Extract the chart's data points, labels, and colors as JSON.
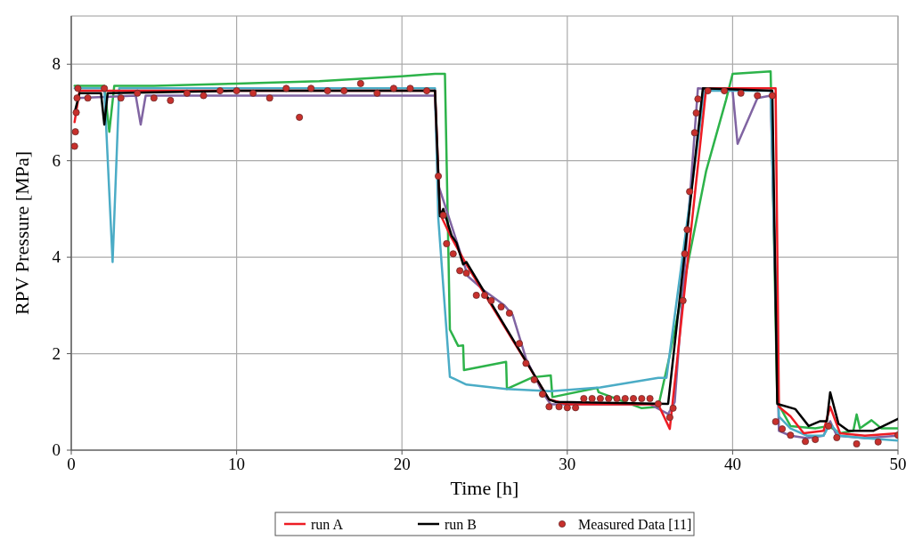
{
  "chart_data": {
    "type": "line",
    "xlabel": "Time [h]",
    "ylabel": "RPV Pressure [MPa]",
    "xlim": [
      0,
      50
    ],
    "ylim": [
      0,
      9
    ],
    "xticks": [
      0,
      10,
      20,
      30,
      40,
      50
    ],
    "yticks": [
      0,
      2,
      4,
      6,
      8
    ],
    "grid": true,
    "legend": "bottom",
    "line_style": "solid",
    "series": [
      {
        "color": "#2db34a",
        "x": [
          0.2,
          2.0,
          2.3,
          2.6,
          5,
          10,
          15,
          20,
          22.0,
          22.6,
          22.9,
          23.4,
          23.7,
          23.75,
          26.3,
          26.35,
          27.9,
          29.0,
          29.1,
          31.8,
          31.9,
          34.5,
          35.5,
          36.2,
          38.4,
          39.6,
          40.0,
          42.3,
          42.7,
          43.5,
          45,
          45.8,
          46.5,
          47.3,
          47.5,
          47.7,
          48.4,
          49,
          50
        ],
        "values": [
          7.55,
          7.55,
          6.6,
          7.55,
          7.55,
          7.6,
          7.65,
          7.75,
          7.8,
          7.8,
          2.5,
          2.16,
          2.17,
          1.66,
          1.83,
          1.27,
          1.51,
          1.55,
          1.1,
          1.29,
          1.2,
          0.87,
          0.9,
          1.97,
          5.79,
          7.26,
          7.8,
          7.85,
          1.0,
          0.5,
          0.45,
          0.5,
          0.35,
          0.4,
          0.74,
          0.45,
          0.62,
          0.45,
          0.45
        ]
      },
      {
        "color": "#8064a2",
        "x": [
          0.3,
          3.9,
          4.2,
          4.5,
          10,
          20,
          22.0,
          22.2,
          24,
          25,
          26.2,
          26.7,
          27.5,
          28.5,
          29,
          30,
          35,
          36.1,
          36.5,
          37.9,
          40.0,
          40.3,
          41.5,
          42.3,
          42.8,
          43.5,
          44.5,
          45.5,
          45.9,
          46.3,
          48,
          50
        ],
        "values": [
          7.3,
          7.35,
          6.75,
          7.35,
          7.35,
          7.35,
          7.35,
          5.5,
          3.6,
          3.3,
          3.0,
          2.8,
          1.9,
          1.2,
          0.95,
          0.95,
          0.95,
          0.75,
          1.0,
          7.5,
          7.45,
          6.35,
          7.3,
          7.35,
          0.4,
          0.3,
          0.25,
          0.3,
          0.6,
          0.3,
          0.25,
          0.3
        ]
      },
      {
        "color": "#4bacc6",
        "x": [
          0.2,
          2.0,
          2.5,
          2.9,
          10,
          22.0,
          22.2,
          22.9,
          23.9,
          26.3,
          29,
          32,
          35.5,
          36.0,
          38.3,
          42.3,
          42.8,
          43.5,
          44.5,
          45.5,
          45.9,
          46.5,
          48,
          50
        ],
        "values": [
          7.5,
          7.5,
          3.9,
          7.5,
          7.5,
          7.5,
          4.8,
          1.52,
          1.36,
          1.27,
          1.22,
          1.3,
          1.5,
          1.5,
          7.45,
          7.45,
          0.7,
          0.45,
          0.3,
          0.3,
          0.55,
          0.3,
          0.25,
          0.2
        ]
      },
      {
        "name": "run A",
        "color": "#ed1c24",
        "x": [
          0.2,
          0.5,
          10,
          22.0,
          22.3,
          23.0,
          23.9,
          28.9,
          30,
          35.5,
          36.2,
          38.4,
          42.6,
          42.8,
          43.5,
          44.3,
          45.5,
          45.9,
          46.5,
          48,
          50
        ],
        "values": [
          6.8,
          7.45,
          7.45,
          7.45,
          4.9,
          4.4,
          3.85,
          1.05,
          0.95,
          0.95,
          0.44,
          7.5,
          7.5,
          0.9,
          0.7,
          0.35,
          0.4,
          0.9,
          0.35,
          0.3,
          0.35
        ]
      },
      {
        "name": "run B",
        "color": "#000000",
        "x": [
          0.2,
          0.5,
          1.8,
          2.0,
          2.2,
          10,
          22.0,
          22.3,
          22.5,
          23.0,
          23.3,
          23.7,
          23.9,
          28.9,
          29.3,
          36.1,
          38.2,
          42.4,
          42.7,
          43.8,
          44.6,
          45.3,
          45.7,
          45.9,
          46.4,
          47.0,
          48.5,
          50
        ],
        "values": [
          7.0,
          7.4,
          7.4,
          6.75,
          7.4,
          7.45,
          7.45,
          4.85,
          5.0,
          4.45,
          4.3,
          3.85,
          3.9,
          1.05,
          1.0,
          0.96,
          7.5,
          7.45,
          0.96,
          0.85,
          0.5,
          0.6,
          0.6,
          1.2,
          0.55,
          0.4,
          0.4,
          0.65
        ]
      },
      {
        "name": "Measured Data [11]",
        "type": "scatter",
        "marker": "circle",
        "color": "#c8302c",
        "x": [
          0.2,
          0.25,
          0.3,
          0.35,
          0.4,
          1.0,
          2.0,
          3.0,
          4.0,
          5.0,
          6.0,
          7.0,
          8.0,
          9.0,
          10.0,
          11.0,
          12.0,
          13.0,
          13.8,
          14.5,
          15.5,
          16.5,
          17.5,
          18.5,
          19.5,
          20.5,
          21.5,
          22.2,
          22.5,
          22.7,
          23.1,
          23.5,
          23.9,
          24.5,
          25.0,
          25.4,
          26.0,
          26.5,
          27.1,
          27.5,
          28.0,
          28.5,
          28.9,
          29.5,
          30.0,
          30.5,
          31.0,
          31.5,
          32.0,
          32.5,
          33.0,
          33.5,
          34.0,
          34.5,
          35.0,
          35.5,
          36.2,
          36.4,
          37.0,
          37.1,
          37.25,
          37.4,
          37.7,
          37.8,
          37.9,
          38.5,
          39.5,
          40.5,
          41.5,
          42.4,
          42.6,
          43.0,
          43.5,
          44.4,
          45.0,
          45.8,
          46.3,
          47.5,
          48.8,
          50.0
        ],
        "values": [
          6.3,
          6.6,
          7.0,
          7.3,
          7.5,
          7.3,
          7.5,
          7.3,
          7.4,
          7.3,
          7.25,
          7.4,
          7.35,
          7.45,
          7.45,
          7.4,
          7.3,
          7.5,
          6.9,
          7.5,
          7.45,
          7.45,
          7.6,
          7.4,
          7.5,
          7.5,
          7.45,
          5.68,
          4.87,
          4.28,
          4.07,
          3.72,
          3.67,
          3.21,
          3.21,
          3.1,
          2.97,
          2.84,
          2.21,
          1.8,
          1.46,
          1.16,
          0.9,
          0.9,
          0.88,
          0.88,
          1.07,
          1.07,
          1.07,
          1.07,
          1.07,
          1.07,
          1.07,
          1.07,
          1.07,
          0.96,
          0.68,
          0.87,
          3.1,
          4.07,
          4.57,
          5.36,
          6.58,
          6.99,
          7.28,
          7.45,
          7.45,
          7.4,
          7.35,
          7.35,
          0.59,
          0.44,
          0.31,
          0.18,
          0.22,
          0.5,
          0.26,
          0.13,
          0.17,
          0.31
        ]
      }
    ]
  }
}
